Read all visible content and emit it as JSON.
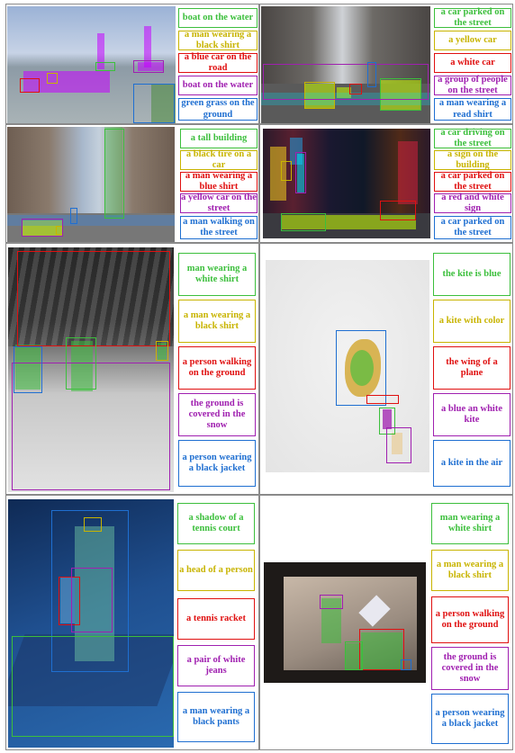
{
  "colors": {
    "green": "#3cbf3c",
    "yellow": "#c8b400",
    "red": "#e01010",
    "purple": "#a020b0",
    "blue": "#1f6fd1"
  },
  "panels": [
    {
      "captions": [
        "boat on the water",
        "a man wearing a black shirt",
        "a blue car on the road",
        "boat on the water",
        "green grass on the ground"
      ]
    },
    {
      "captions": [
        "a car parked on the street",
        "a yellow car",
        "a white car",
        "a group of people on the street",
        "a man wearing a read shirt"
      ]
    },
    {
      "captions": [
        "a tall building",
        "a black tire on a car",
        "a man wearing a blue shirt",
        "a yellow car on the street",
        "a man walking on the street"
      ]
    },
    {
      "captions": [
        "a car driving on the street",
        "a sign on the building",
        "a car parked on the street",
        "a red and white sign",
        "a car parked on the street"
      ]
    },
    {
      "captions": [
        "man wearing a white shirt",
        "a man wearing a black shirt",
        "a person walking on the ground",
        "the ground is covered in the snow",
        "a person wearing a black jacket"
      ]
    },
    {
      "captions": [
        "the kite is blue",
        "a kite with color",
        "the wing of a plane",
        "a blue an white kite",
        "a kite in the air"
      ]
    },
    {
      "captions": [
        "a shadow of a tennis court",
        "a head of a person",
        "a tennis racket",
        "a pair of white jeans",
        "a man wearing a black pants"
      ]
    },
    {
      "captions": [
        "man wearing a white shirt",
        "a man wearing a black shirt",
        "a person walking on the ground",
        "the ground is covered in the snow",
        "a person wearing a black jacket"
      ]
    }
  ]
}
